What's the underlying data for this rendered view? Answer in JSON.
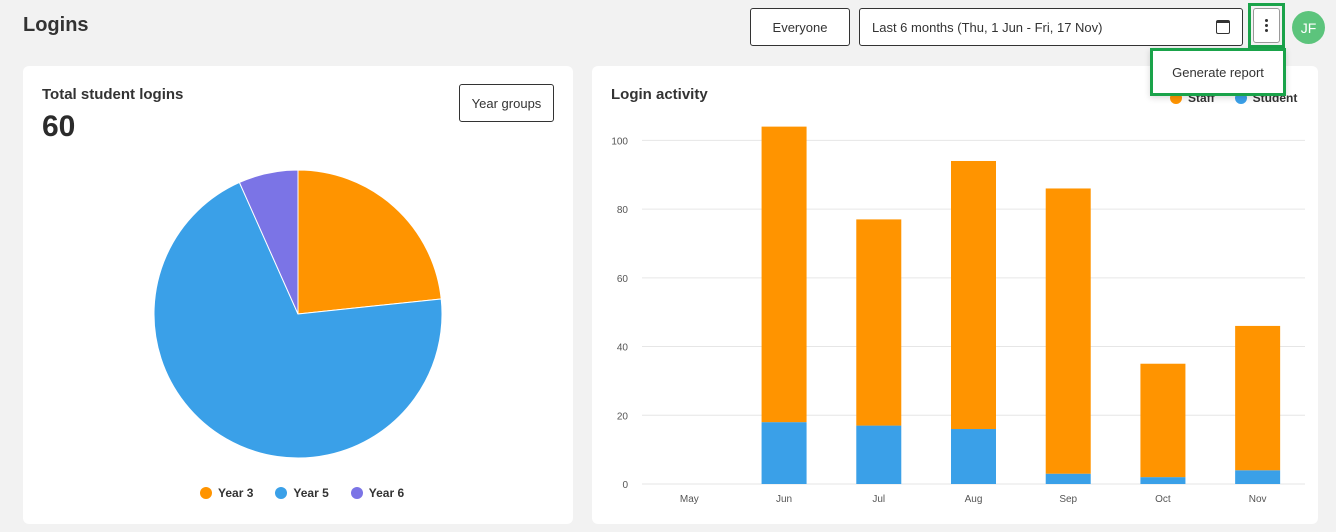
{
  "header": {
    "title": "Logins",
    "audience_label": "Everyone",
    "date_range_label": "Last 6 months (Thu, 1 Jun - Fri, 17 Nov)",
    "avatar_initials": "JF",
    "menu": {
      "generate_report": "Generate report"
    }
  },
  "logins_card": {
    "title": "Total student logins",
    "total": "60",
    "year_groups_label": "Year groups"
  },
  "activity_card": {
    "title": "Login activity"
  },
  "colors": {
    "orange": "#ff9400",
    "blue": "#3aa0e8",
    "purple": "#7b74e6",
    "highlight": "#1aa34a"
  },
  "chart_data": [
    {
      "type": "pie",
      "categories": [
        "Year 3",
        "Year 5",
        "Year 6"
      ],
      "values": [
        14,
        42,
        4
      ],
      "colors": [
        "#ff9400",
        "#3aa0e8",
        "#7b74e6"
      ],
      "legend": "bottom"
    },
    {
      "type": "bar",
      "stacked": true,
      "categories": [
        "May",
        "Jun",
        "Jul",
        "Aug",
        "Sep",
        "Oct",
        "Nov"
      ],
      "series": [
        {
          "name": "Student",
          "values": [
            0,
            18,
            17,
            16,
            3,
            2,
            4
          ],
          "color": "#3aa0e8"
        },
        {
          "name": "Staff",
          "values": [
            0,
            86,
            60,
            78,
            83,
            33,
            42
          ],
          "color": "#ff9400"
        }
      ],
      "legend_order": [
        "Staff",
        "Student"
      ],
      "ylim": [
        0,
        110
      ],
      "yticks": [
        0,
        20,
        40,
        60,
        80,
        100
      ],
      "grid": true,
      "legend": "top-right"
    }
  ]
}
